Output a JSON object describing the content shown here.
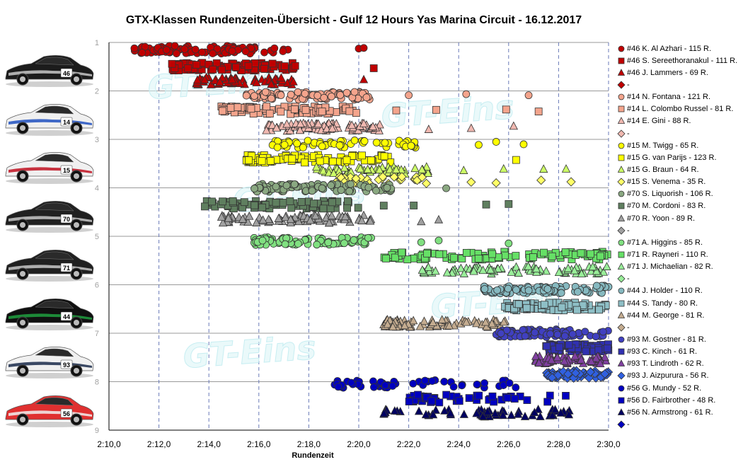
{
  "chart_data": {
    "type": "scatter",
    "title": "GTX-Klassen  Rundenzeiten-Übersicht  - Gulf 12 Hours Yas Marina Circuit - 16.12.2017",
    "xlabel": "Rundenzeit",
    "ylabel": "",
    "xlim": [
      130,
      150
    ],
    "ylim": [
      9,
      1
    ],
    "x_ticks": [
      "2:10,0",
      "2:12,0",
      "2:14,0",
      "2:16,0",
      "2:18,0",
      "2:20,0",
      "2:22,0",
      "2:24,0",
      "2:26,0",
      "2:28,0",
      "2:30,0"
    ],
    "y_ticks": [
      "1",
      "2",
      "3",
      "4",
      "5",
      "6",
      "7",
      "8",
      "9"
    ],
    "grid": "on",
    "legend_position": "right",
    "watermark": "GT-Eins",
    "series": [
      {
        "name": "#46 K. Al Azhari - 115 R.",
        "color": "#c00000",
        "marker": "circle",
        "y": 1.15,
        "x_range": [
          131.0,
          137.2
        ],
        "laps": 115,
        "outliers": [
          140.0,
          140.2
        ]
      },
      {
        "name": "#46 S. Sereethoranakul - 111 R.",
        "color": "#c00000",
        "marker": "square",
        "y": 1.5,
        "x_range": [
          132.5,
          137.5
        ],
        "laps": 111,
        "outliers": [
          140.6
        ]
      },
      {
        "name": "#46 J. Lammers - 69 R.",
        "color": "#c00000",
        "marker": "triangle",
        "y": 1.8,
        "x_range": [
          133.5,
          137.5
        ],
        "laps": 69,
        "outliers": [
          140.2
        ]
      },
      {
        "name": "-",
        "color": "#c00000",
        "marker": "diamond",
        "y": null,
        "x_range": null,
        "laps": 0,
        "outliers": []
      },
      {
        "name": "#14 N. Fontana - 121 R.",
        "color": "#f4a48c",
        "marker": "circle",
        "y": 2.1,
        "x_range": [
          135.5,
          140.5
        ],
        "laps": 121,
        "outliers": [
          142.0,
          144.3,
          146.8
        ]
      },
      {
        "name": "#14 L. Colombo Russel - 81 R.",
        "color": "#f4a48c",
        "marker": "square",
        "y": 2.4,
        "x_range": [
          134.5,
          140.2
        ],
        "laps": 81,
        "outliers": [
          141.5,
          143.1,
          145.9,
          147.2
        ]
      },
      {
        "name": "#14 E. Gini - 88 R.",
        "color": "#f0b8b0",
        "marker": "triangle",
        "y": 2.75,
        "x_range": [
          136.3,
          141.0
        ],
        "laps": 88,
        "outliers": [
          142.8,
          144.5,
          146.2
        ]
      },
      {
        "name": "-",
        "color": "#f0b8b0",
        "marker": "diamond",
        "y": null,
        "x_range": null,
        "laps": 0,
        "outliers": []
      },
      {
        "name": "#15 M. Twigg - 65 R.",
        "color": "#ffff00",
        "marker": "circle",
        "y": 3.1,
        "x_range": [
          136.5,
          142.5
        ],
        "laps": 65,
        "outliers": [
          144.8,
          145.5,
          146.6
        ]
      },
      {
        "name": "#15 G. van Parijs - 123 R.",
        "color": "#ffff00",
        "marker": "square",
        "y": 3.4,
        "x_range": [
          135.5,
          141.3
        ],
        "laps": 123,
        "outliers": [
          146.3
        ]
      },
      {
        "name": "#15 G. Braun - 64 R.",
        "color": "#ccff66",
        "marker": "triangle",
        "y": 3.65,
        "x_range": [
          138.3,
          142.8
        ],
        "laps": 64,
        "outliers": [
          144.2,
          145.8,
          147.4,
          148.3
        ]
      },
      {
        "name": "#15 S. Venema - 35 R.",
        "color": "#ffff66",
        "marker": "diamond",
        "y": 3.85,
        "x_range": [
          139.0,
          142.8
        ],
        "laps": 35,
        "outliers": [
          144.5,
          145.5,
          147.3,
          148.5
        ]
      },
      {
        "name": "#70 S. Liquorish - 106 R.",
        "color": "#8aa881",
        "marker": "circle",
        "y": 4.0,
        "x_range": [
          135.8,
          141.5
        ],
        "laps": 106,
        "outliers": [
          143.5
        ]
      },
      {
        "name": "#70 M. Cordoni - 83 R.",
        "color": "#5f7f5f",
        "marker": "square",
        "y": 4.35,
        "x_range": [
          133.8,
          140.0
        ],
        "laps": 83,
        "outliers": [
          141.0,
          142.2,
          145.1,
          146.0
        ]
      },
      {
        "name": "#70 R. Yoon - 89 R.",
        "color": "#a0a0a0",
        "marker": "triangle",
        "y": 4.65,
        "x_range": [
          134.5,
          140.5
        ],
        "laps": 89,
        "outliers": [
          142.5,
          143.2
        ]
      },
      {
        "name": "-",
        "color": "#a0a0a0",
        "marker": "diamond",
        "y": null,
        "x_range": null,
        "laps": 0,
        "outliers": []
      },
      {
        "name": "#71 A. Higgins - 85 R.",
        "color": "#80e080",
        "marker": "circle",
        "y": 5.1,
        "x_range": [
          135.8,
          140.5
        ],
        "laps": 85,
        "outliers": [
          142.5,
          143.2,
          146.0
        ]
      },
      {
        "name": "#71 R. Rayneri - 110 R.",
        "color": "#66e066",
        "marker": "square",
        "y": 5.4,
        "x_range": [
          141.0,
          150.0
        ],
        "laps": 110,
        "outliers": []
      },
      {
        "name": "#71 J. Michaelian - 82 R.",
        "color": "#99ee99",
        "marker": "triangle",
        "y": 5.7,
        "x_range": [
          142.5,
          150.0
        ],
        "laps": 82,
        "outliers": []
      },
      {
        "name": "-",
        "color": "#99ee99",
        "marker": "diamond",
        "y": null,
        "x_range": null,
        "laps": 0,
        "outliers": []
      },
      {
        "name": "#44 J. Holder - 110 R.",
        "color": "#86b9c0",
        "marker": "circle",
        "y": 6.1,
        "x_range": [
          145.0,
          150.0
        ],
        "laps": 110,
        "outliers": []
      },
      {
        "name": "#44 S. Tandy - 80 R.",
        "color": "#8ebfc6",
        "marker": "square",
        "y": 6.45,
        "x_range": [
          145.8,
          150.0
        ],
        "laps": 80,
        "outliers": []
      },
      {
        "name": "#44 M. George - 81 R.",
        "color": "#c4ac90",
        "marker": "triangle",
        "y": 6.8,
        "x_range": [
          141.0,
          146.0
        ],
        "laps": 81,
        "outliers": []
      },
      {
        "name": "-",
        "color": "#c4ac90",
        "marker": "diamond",
        "y": null,
        "x_range": null,
        "laps": 0,
        "outliers": []
      },
      {
        "name": "#93 M. Gostner - 81 R.",
        "color": "#4040c0",
        "marker": "circle",
        "y": 7.0,
        "x_range": [
          145.5,
          150.0
        ],
        "laps": 81,
        "outliers": []
      },
      {
        "name": "#93 C. Kinch - 61 R.",
        "color": "#3030b0",
        "marker": "square",
        "y": 7.3,
        "x_range": [
          147.5,
          150.0
        ],
        "laps": 61,
        "outliers": []
      },
      {
        "name": "#93 T. Lindroth - 62 R.",
        "color": "#8040a0",
        "marker": "triangle",
        "y": 7.55,
        "x_range": [
          147.0,
          150.0
        ],
        "laps": 62,
        "outliers": []
      },
      {
        "name": "#93 J. Aizpurura - 56 R.",
        "color": "#3060e0",
        "marker": "diamond",
        "y": 7.85,
        "x_range": [
          147.5,
          150.0
        ],
        "laps": 56,
        "outliers": []
      },
      {
        "name": "#56 G. Mundy - 52 R.",
        "color": "#0000c0",
        "marker": "circle",
        "y": 8.05,
        "x_range": [
          139.0,
          146.5
        ],
        "laps": 52,
        "outliers": []
      },
      {
        "name": "#56 D. Fairbrother - 48 R.",
        "color": "#0000c0",
        "marker": "square",
        "y": 8.35,
        "x_range": [
          142.0,
          148.5
        ],
        "laps": 48,
        "outliers": []
      },
      {
        "name": "#56 N. Armstrong - 61 R.",
        "color": "#000060",
        "marker": "triangle",
        "y": 8.65,
        "x_range": [
          141.0,
          148.5
        ],
        "laps": 61,
        "outliers": []
      },
      {
        "name": "-",
        "color": "#0000c0",
        "marker": "diamond",
        "y": null,
        "x_range": null,
        "laps": 0,
        "outliers": []
      }
    ],
    "cars": [
      {
        "number": "46",
        "body": "#1c1c1c",
        "accent": "#c8c8c8",
        "type": "lambo"
      },
      {
        "number": "14",
        "body": "#f0f0f0",
        "accent": "#2050c0",
        "type": "porsche"
      },
      {
        "number": "15",
        "body": "#f0f0f0",
        "accent": "#c01020",
        "type": "porsche"
      },
      {
        "number": "70",
        "body": "#202020",
        "accent": "#c8c8c8",
        "type": "lambo"
      },
      {
        "number": "71",
        "body": "#202020",
        "accent": "#c8c8c8",
        "type": "lambo"
      },
      {
        "number": "44",
        "body": "#101010",
        "accent": "#20a040",
        "type": "aston"
      },
      {
        "number": "93",
        "body": "#f0f0f0",
        "accent": "#1a2a4a",
        "type": "maserati"
      },
      {
        "number": "56",
        "body": "#e03030",
        "accent": "#f0f0f0",
        "type": "porsche"
      }
    ]
  }
}
